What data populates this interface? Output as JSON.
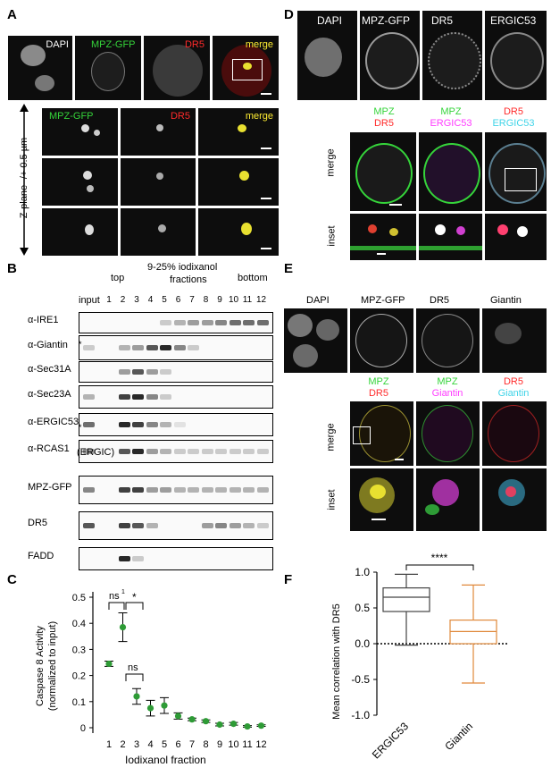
{
  "colors": {
    "green": "#35d43a",
    "red": "#ff2b2b",
    "yellow": "#ffee33",
    "magenta": "#ff3cff",
    "cyan": "#3fd4e8",
    "plot_green": "#2e9b36",
    "box_orange": "#e0883a"
  },
  "panelA": {
    "letter": "A",
    "top_labels": [
      "DAPI",
      "MPZ-GFP",
      "DR5",
      "merge"
    ],
    "zoom_labels": [
      "MPZ-GFP",
      "DR5",
      "merge"
    ],
    "zplane": "Z-plane -/+ 0.5 µm"
  },
  "panelB": {
    "letter": "B",
    "top": "top",
    "middle_line1": "9-25% iodixanol",
    "middle_line2": "fractions",
    "bottom": "bottom",
    "input": "input",
    "fractions": [
      "1",
      "2",
      "3",
      "4",
      "5",
      "6",
      "7",
      "8",
      "9",
      "10",
      "11",
      "12"
    ],
    "blots": [
      "α-IRE1",
      "α-Giantin",
      "α-Sec31A",
      "α-Sec23A",
      "α-ERGIC53",
      "α-RCAS1",
      "MPZ-GFP",
      "DR5",
      "FADD"
    ],
    "rcas_sub": "(ERGIC)",
    "star": "*"
  },
  "panelC": {
    "letter": "C",
    "chart_data": {
      "type": "scatter",
      "x": [
        1,
        2,
        3,
        4,
        5,
        6,
        7,
        8,
        9,
        10,
        11,
        12
      ],
      "y": [
        0.245,
        0.385,
        0.12,
        0.075,
        0.085,
        0.045,
        0.032,
        0.025,
        0.012,
        0.015,
        0.005,
        0.008
      ],
      "err": [
        0.01,
        0.055,
        0.03,
        0.03,
        0.03,
        0.012,
        0.005,
        0.005,
        0.005,
        0.005,
        0.003,
        0.003
      ],
      "ylim": [
        0,
        0.5
      ],
      "yticks": [
        "0",
        "0.1",
        "0.2",
        "0.3",
        "0.4",
        "0.5"
      ],
      "xticks": [
        "1",
        "2",
        "3",
        "4",
        "5",
        "6",
        "7",
        "8",
        "9",
        "10",
        "11",
        "12"
      ],
      "ylabel": "Caspase 8 Activity",
      "ylabel2": "(normalized to input)",
      "xlabel": "Iodixanol fraction",
      "annotations": [
        "ns",
        "1",
        "*",
        "ns"
      ]
    }
  },
  "panelD": {
    "letter": "D",
    "top_labels": [
      "DAPI",
      "MPZ-GFP",
      "DR5",
      "ERGIC53"
    ],
    "col_headers": [
      [
        "MPZ",
        "DR5"
      ],
      [
        "MPZ",
        "ERGIC53"
      ],
      [
        "DR5",
        "ERGIC53"
      ]
    ],
    "row_labels": [
      "merge",
      "inset"
    ]
  },
  "panelE": {
    "letter": "E",
    "top_labels": [
      "DAPI",
      "MPZ-GFP",
      "DR5",
      "Giantin"
    ],
    "col_headers": [
      [
        "MPZ",
        "DR5"
      ],
      [
        "MPZ",
        "Giantin"
      ],
      [
        "DR5",
        "Giantin"
      ]
    ],
    "row_labels": [
      "merge",
      "inset"
    ]
  },
  "panelF": {
    "letter": "F",
    "chart_data": {
      "type": "box",
      "categories": [
        "ERGIC53",
        "Giantin"
      ],
      "series": [
        {
          "min": -0.02,
          "q1": 0.45,
          "median": 0.65,
          "q3": 0.78,
          "max": 0.97
        },
        {
          "min": -0.55,
          "q1": 0.0,
          "median": 0.17,
          "q3": 0.33,
          "max": 0.82
        }
      ],
      "ylim": [
        -1.0,
        1.0
      ],
      "yticks": [
        "-1.0",
        "-0.5",
        "0.0",
        "0.5",
        "1.0"
      ],
      "ylabel": "Mean correlation with DR5",
      "significance": "****"
    }
  }
}
